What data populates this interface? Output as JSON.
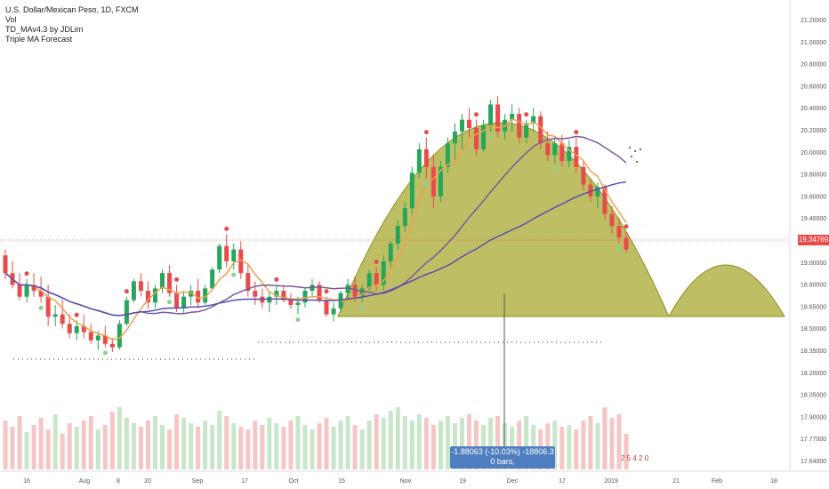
{
  "legend": {
    "symbol": "U.S. Dollar/Mexican Peso, 1D, FXCM",
    "vol": "Vol",
    "td": "TD_MAv4.3 by JDLim",
    "forecast": "Triple MA Forecast"
  },
  "measure": {
    "line1": "-1.88063 (-10.03%) -18806.3",
    "line2": "0 bars,"
  },
  "last_price_label": "19.34769",
  "badge_text": "2 5 4 2 0",
  "colors": {
    "up": "#26a65b",
    "down": "#e84b4b",
    "ma_fast": "#f0a050",
    "ma_mid": "#7a5a9a",
    "ma_slow": "#5a50b0",
    "forecast_fill": "#a8a832",
    "vol_up": "#c8e6c9",
    "vol_down": "#f5c6c6"
  },
  "chart_data": {
    "type": "candlestick",
    "y_ticks": [
      "21.20000",
      "21.00000",
      "20.80000",
      "20.60000",
      "20.40000",
      "20.20000",
      "20.00000",
      "19.80000",
      "19.60000",
      "19.40000",
      "19.20000",
      "19.00000",
      "18.80000",
      "18.65000",
      "18.50000",
      "18.35000",
      "18.20000",
      "18.05000",
      "17.90000",
      "17.77000",
      "17.64000"
    ],
    "x_ticks": [
      "16",
      "Aug",
      "8",
      "20",
      "Sep",
      "17",
      "Oct",
      "15",
      "Nov",
      "19",
      "Dec",
      "17",
      "2019",
      "21",
      "Feb",
      "18"
    ],
    "ylim": [
      17.6,
      21.25
    ],
    "last_price": 19.34769,
    "ohlc": [
      [
        19.3,
        19.35,
        19.1,
        19.15
      ],
      [
        19.15,
        19.25,
        19.02,
        19.05
      ],
      [
        19.05,
        19.15,
        18.92,
        18.95
      ],
      [
        18.95,
        19.1,
        18.9,
        19.05
      ],
      [
        19.05,
        19.15,
        18.95,
        19.0
      ],
      [
        19.0,
        19.12,
        18.9,
        18.95
      ],
      [
        18.95,
        19.05,
        18.7,
        18.78
      ],
      [
        18.78,
        18.88,
        18.7,
        18.8
      ],
      [
        18.8,
        18.92,
        18.68,
        18.72
      ],
      [
        18.72,
        18.8,
        18.6,
        18.64
      ],
      [
        18.64,
        18.75,
        18.58,
        18.7
      ],
      [
        18.7,
        18.8,
        18.6,
        18.65
      ],
      [
        18.65,
        18.72,
        18.55,
        18.58
      ],
      [
        18.58,
        18.66,
        18.5,
        18.62
      ],
      [
        18.62,
        18.7,
        18.52,
        18.55
      ],
      [
        18.55,
        18.6,
        18.48,
        18.52
      ],
      [
        18.52,
        18.75,
        18.5,
        18.72
      ],
      [
        18.72,
        18.95,
        18.7,
        18.92
      ],
      [
        18.92,
        19.1,
        18.9,
        19.08
      ],
      [
        19.08,
        19.15,
        18.95,
        19.0
      ],
      [
        19.0,
        19.08,
        18.85,
        18.9
      ],
      [
        18.9,
        19.05,
        18.85,
        19.02
      ],
      [
        19.02,
        19.18,
        18.98,
        19.15
      ],
      [
        19.15,
        19.22,
        18.95,
        18.98
      ],
      [
        18.98,
        19.05,
        18.82,
        18.85
      ],
      [
        18.85,
        19.0,
        18.8,
        18.95
      ],
      [
        18.95,
        19.05,
        18.88,
        19.0
      ],
      [
        19.0,
        19.1,
        18.85,
        18.9
      ],
      [
        18.9,
        19.05,
        18.88,
        19.02
      ],
      [
        19.02,
        19.2,
        19.0,
        19.18
      ],
      [
        19.18,
        19.4,
        19.15,
        19.38
      ],
      [
        19.38,
        19.48,
        19.2,
        19.25
      ],
      [
        19.25,
        19.4,
        19.18,
        19.35
      ],
      [
        19.35,
        19.42,
        19.1,
        19.15
      ],
      [
        19.15,
        19.22,
        18.95,
        19.0
      ],
      [
        19.0,
        19.08,
        18.88,
        18.95
      ],
      [
        18.95,
        19.02,
        18.85,
        18.9
      ],
      [
        18.9,
        19.0,
        18.82,
        18.95
      ],
      [
        18.95,
        19.05,
        18.88,
        19.0
      ],
      [
        19.0,
        19.05,
        18.9,
        18.92
      ],
      [
        18.92,
        18.98,
        18.85,
        18.88
      ],
      [
        18.88,
        18.95,
        18.8,
        18.9
      ],
      [
        18.9,
        19.02,
        18.86,
        19.0
      ],
      [
        19.0,
        19.1,
        18.95,
        19.05
      ],
      [
        19.05,
        19.08,
        18.9,
        18.92
      ],
      [
        18.92,
        18.95,
        18.78,
        18.8
      ],
      [
        18.8,
        18.9,
        18.74,
        18.85
      ],
      [
        18.85,
        19.0,
        18.82,
        18.98
      ],
      [
        18.98,
        19.1,
        18.92,
        19.05
      ],
      [
        19.05,
        19.12,
        18.9,
        18.95
      ],
      [
        18.95,
        19.05,
        18.9,
        19.02
      ],
      [
        19.02,
        19.18,
        19.0,
        19.15
      ],
      [
        19.15,
        19.2,
        19.0,
        19.05
      ],
      [
        19.05,
        19.3,
        19.0,
        19.25
      ],
      [
        19.25,
        19.42,
        19.2,
        19.4
      ],
      [
        19.4,
        19.6,
        19.35,
        19.55
      ],
      [
        19.55,
        19.75,
        19.5,
        19.7
      ],
      [
        19.7,
        20.05,
        19.65,
        20.0
      ],
      [
        20.0,
        20.25,
        19.95,
        20.2
      ],
      [
        20.2,
        20.3,
        19.95,
        20.05
      ],
      [
        20.05,
        20.15,
        19.7,
        19.8
      ],
      [
        19.8,
        20.1,
        19.75,
        20.05
      ],
      [
        20.05,
        20.3,
        20.0,
        20.25
      ],
      [
        20.25,
        20.42,
        20.1,
        20.35
      ],
      [
        20.35,
        20.5,
        20.2,
        20.45
      ],
      [
        20.45,
        20.55,
        20.3,
        20.38
      ],
      [
        20.38,
        20.45,
        20.15,
        20.2
      ],
      [
        20.2,
        20.45,
        20.18,
        20.4
      ],
      [
        20.4,
        20.62,
        20.35,
        20.58
      ],
      [
        20.58,
        20.65,
        20.3,
        20.35
      ],
      [
        20.35,
        20.5,
        20.28,
        20.45
      ],
      [
        20.45,
        20.58,
        20.35,
        20.5
      ],
      [
        20.5,
        20.55,
        20.25,
        20.3
      ],
      [
        20.3,
        20.45,
        20.25,
        20.42
      ],
      [
        20.42,
        20.55,
        20.35,
        20.48
      ],
      [
        20.48,
        20.52,
        20.2,
        20.25
      ],
      [
        20.25,
        20.35,
        20.1,
        20.15
      ],
      [
        20.15,
        20.3,
        20.08,
        20.25
      ],
      [
        20.25,
        20.32,
        20.05,
        20.1
      ],
      [
        20.1,
        20.28,
        20.05,
        20.22
      ],
      [
        20.22,
        20.3,
        20.0,
        20.05
      ],
      [
        20.05,
        20.1,
        19.85,
        19.9
      ],
      [
        19.9,
        19.95,
        19.75,
        19.8
      ],
      [
        19.8,
        19.92,
        19.7,
        19.88
      ],
      [
        19.88,
        19.9,
        19.6,
        19.65
      ],
      [
        19.65,
        19.72,
        19.48,
        19.55
      ],
      [
        19.55,
        19.62,
        19.4,
        19.45
      ],
      [
        19.45,
        19.5,
        19.32,
        19.35
      ]
    ],
    "volume": [
      55,
      48,
      60,
      42,
      50,
      58,
      45,
      62,
      40,
      52,
      48,
      55,
      60,
      45,
      50,
      65,
      70,
      58,
      52,
      48,
      55,
      60,
      50,
      45,
      62,
      58,
      52,
      48,
      55,
      50,
      66,
      60,
      52,
      48,
      45,
      55,
      50,
      58,
      52,
      48,
      55,
      60,
      50,
      45,
      52,
      58,
      48,
      55,
      60,
      50,
      45,
      55,
      62,
      58,
      66,
      70,
      60,
      55,
      62,
      58,
      50,
      55,
      60,
      52,
      58,
      62,
      55,
      50,
      58,
      60,
      52,
      48,
      55,
      60,
      50,
      45,
      52,
      55,
      48,
      50,
      45,
      55,
      60,
      52,
      70,
      58,
      62,
      40
    ]
  }
}
